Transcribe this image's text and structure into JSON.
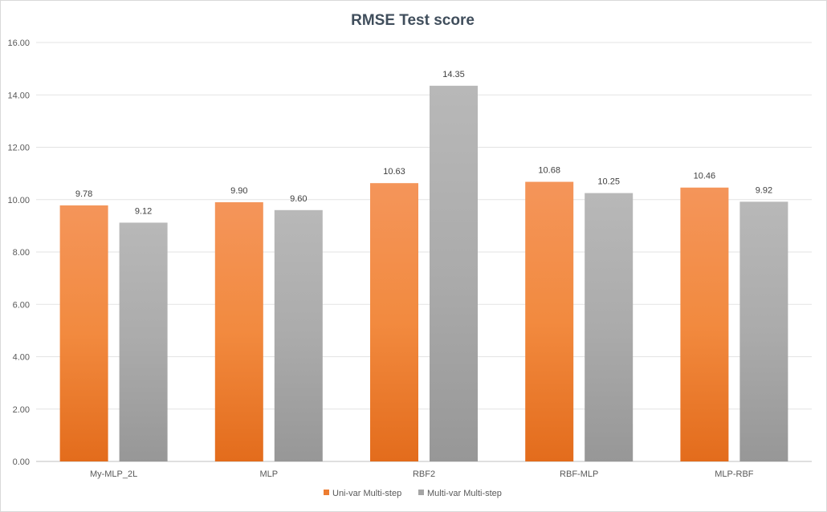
{
  "chart_data": {
    "type": "bar",
    "title": "RMSE Test score",
    "xlabel": "",
    "ylabel": "",
    "categories": [
      "My-MLP_2L",
      "MLP",
      "RBF2",
      "RBF-MLP",
      "MLP-RBF"
    ],
    "series": [
      {
        "name": "Uni-var Multi-step",
        "values": [
          9.78,
          9.9,
          10.63,
          10.68,
          10.46
        ],
        "value_labels": [
          "9.78",
          "9.90",
          "10.63",
          "10.68",
          "10.46"
        ],
        "color": "#ed7d31"
      },
      {
        "name": "Multi-var Multi-step",
        "values": [
          9.12,
          9.6,
          14.35,
          10.25,
          9.92
        ],
        "value_labels": [
          "9.12",
          "9.60",
          "14.35",
          "10.25",
          "9.92"
        ],
        "color": "#a5a5a5"
      }
    ],
    "ylim": [
      0,
      16
    ],
    "yticks": [
      0,
      2,
      4,
      6,
      8,
      10,
      12,
      14,
      16
    ],
    "ytick_labels": [
      "0.00",
      "2.00",
      "4.00",
      "6.00",
      "8.00",
      "10.00",
      "12.00",
      "14.00",
      "16.00"
    ],
    "grid": true,
    "legend_position": "bottom"
  }
}
